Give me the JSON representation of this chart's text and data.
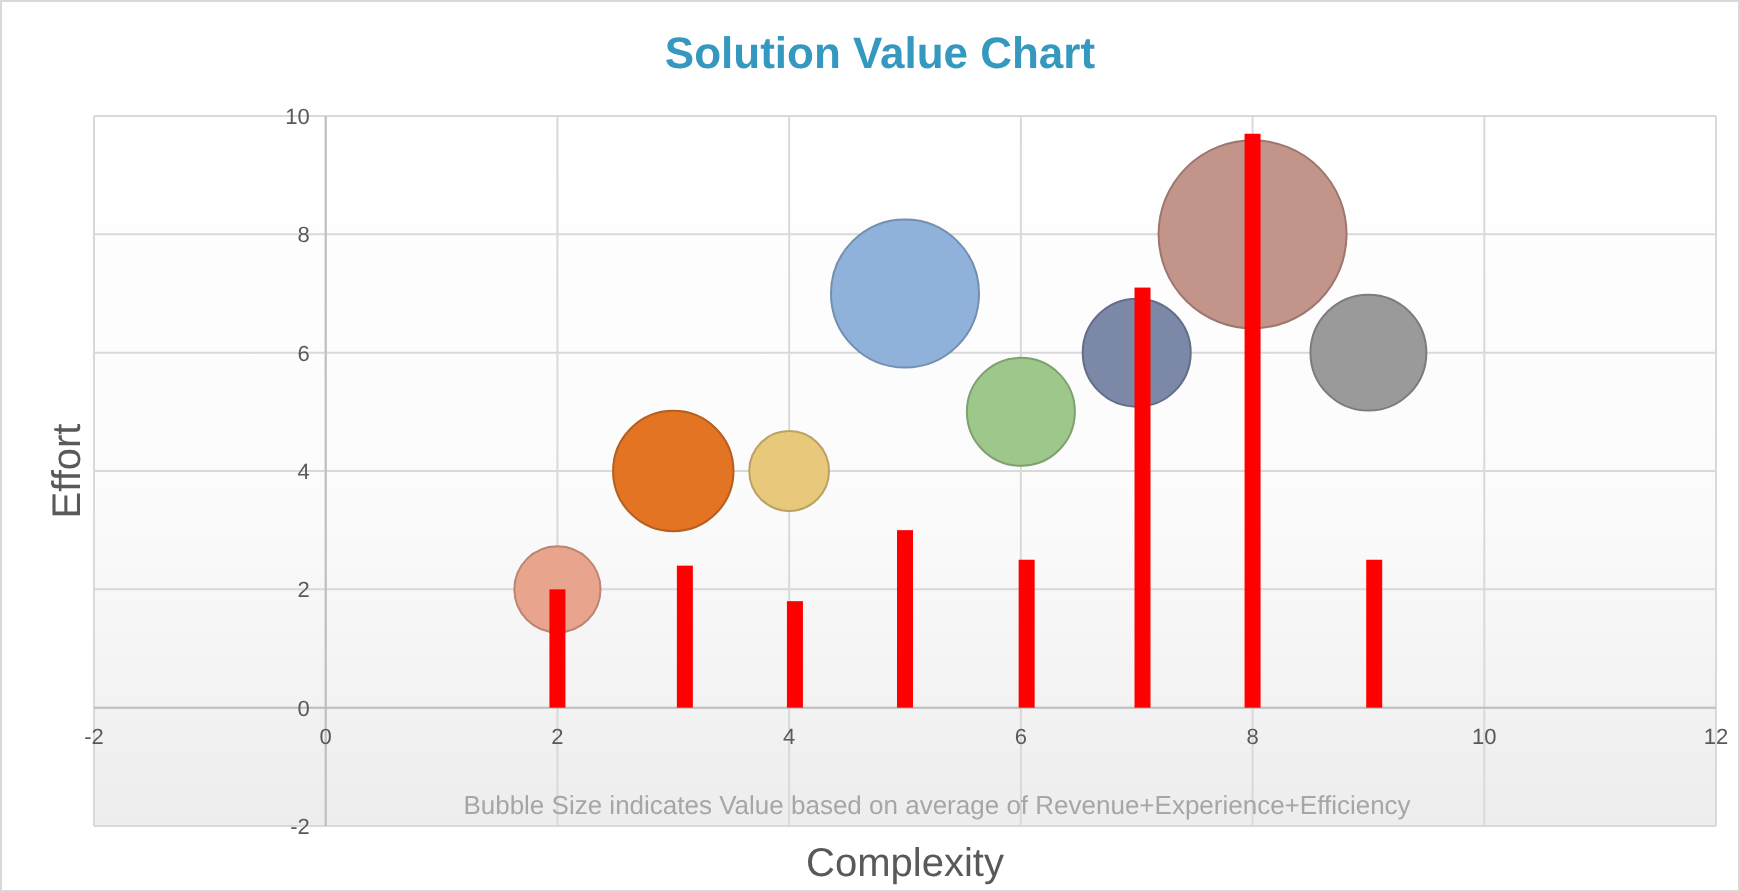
{
  "chart_data": {
    "type": "bubble",
    "title": "Solution Value Chart",
    "xlabel": "Complexity",
    "ylabel": "Effort",
    "annotations": [
      "Bubble Size indicates Value based on average of Revenue+Experience+Efficiency"
    ],
    "xlim": [
      -2,
      12
    ],
    "ylim": [
      -2,
      10
    ],
    "xticks": [
      -2,
      0,
      2,
      4,
      6,
      8,
      10,
      12
    ],
    "yticks": [
      -2,
      0,
      2,
      4,
      6,
      8,
      10
    ],
    "grid": true,
    "series": [
      {
        "x": [
          2,
          3,
          4,
          5,
          6,
          7,
          8,
          9
        ],
        "values": [
          2,
          4,
          4,
          7,
          5,
          6,
          8,
          6
        ],
        "sizes": [
          0.21,
          0.41,
          0.18,
          0.62,
          0.33,
          0.33,
          1,
          0.38
        ],
        "colors": [
          "#e9a48e",
          "#e27424",
          "#e8c97c",
          "#8fb1da",
          "#9dc78b",
          "#7c88a8",
          "#c39489",
          "#9a9a9a"
        ]
      },
      {
        "type": "bar",
        "x": [
          2,
          3.1,
          4.05,
          5,
          6.05,
          7.05,
          8,
          9.05
        ],
        "values": [
          2,
          2.4,
          1.8,
          3,
          2.5,
          7.1,
          9.7,
          2.5
        ],
        "color": "#ff0000"
      }
    ]
  }
}
